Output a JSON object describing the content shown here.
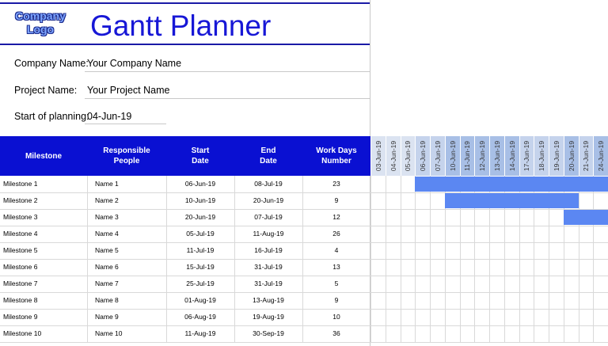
{
  "logo": {
    "line1": "Company",
    "line2": "Logo"
  },
  "title": "Gantt Planner",
  "info": {
    "company_label": "Company Name:",
    "company_value": "Your Company Name",
    "project_label": "Project Name:",
    "project_value": "Your Project Name",
    "start_label": "Start of planning:",
    "start_value": "04-Jun-19"
  },
  "table": {
    "headers": {
      "milestone": "Milestone",
      "responsible_1": "Responsible",
      "responsible_2": "People",
      "start_1": "Start",
      "start_2": "Date",
      "end_1": "End",
      "end_2": "Date",
      "workdays_1": "Work Days",
      "workdays_2": "Number"
    },
    "rows": [
      {
        "milestone": "Milestone 1",
        "person": "Name 1",
        "start": "06-Jun-19",
        "end": "08-Jul-19",
        "days": "23"
      },
      {
        "milestone": "Milestone 2",
        "person": "Name 2",
        "start": "10-Jun-19",
        "end": "20-Jun-19",
        "days": "9"
      },
      {
        "milestone": "Milestone 3",
        "person": "Name 3",
        "start": "20-Jun-19",
        "end": "07-Jul-19",
        "days": "12"
      },
      {
        "milestone": "Milestone 4",
        "person": "Name 4",
        "start": "05-Jul-19",
        "end": "11-Aug-19",
        "days": "26"
      },
      {
        "milestone": "Milestone 5",
        "person": "Name 5",
        "start": "11-Jul-19",
        "end": "16-Jul-19",
        "days": "4"
      },
      {
        "milestone": "Milestone 6",
        "person": "Name 6",
        "start": "15-Jul-19",
        "end": "31-Jul-19",
        "days": "13"
      },
      {
        "milestone": "Milestone 7",
        "person": "Name 7",
        "start": "25-Jul-19",
        "end": "31-Jul-19",
        "days": "5"
      },
      {
        "milestone": "Milestone 8",
        "person": "Name 8",
        "start": "01-Aug-19",
        "end": "13-Aug-19",
        "days": "9"
      },
      {
        "milestone": "Milestone 9",
        "person": "Name 9",
        "start": "06-Aug-19",
        "end": "19-Aug-19",
        "days": "10"
      },
      {
        "milestone": "Milestone 10",
        "person": "Name 10",
        "start": "11-Aug-19",
        "end": "30-Sep-19",
        "days": "36"
      }
    ]
  },
  "gantt": {
    "dates": [
      "03-Jun-19",
      "04-Jun-19",
      "05-Jun-19",
      "06-Jun-19",
      "07-Jun-19",
      "10-Jun-19",
      "11-Jun-19",
      "12-Jun-19",
      "13-Jun-19",
      "14-Jun-19",
      "17-Jun-19",
      "18-Jun-19",
      "19-Jun-19",
      "20-Jun-19",
      "21-Jun-19",
      "24-Jun-19"
    ],
    "header_colors": [
      "#dbe3f1",
      "#dbe3f1",
      "#dbe3f1",
      "#c5d3ec",
      "#c5d3ec",
      "#a8bfe6",
      "#a8bfe6",
      "#a8bfe6",
      "#a8bfe6",
      "#a8bfe6",
      "#c5d3ec",
      "#c5d3ec",
      "#c5d3ec",
      "#a8bfe6",
      "#c5d3ec",
      "#a8bfe6"
    ],
    "bar_color": "#5b87f2",
    "bars": [
      {
        "row": 0,
        "start_col": 3,
        "end_col": 15
      },
      {
        "row": 1,
        "start_col": 5,
        "end_col": 13
      },
      {
        "row": 2,
        "start_col": 13,
        "end_col": 15
      }
    ]
  }
}
